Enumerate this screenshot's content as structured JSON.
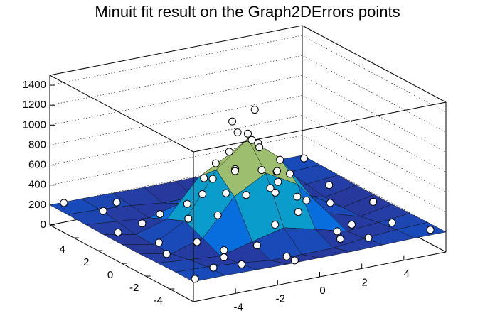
{
  "chart_data": {
    "type": "surface3d",
    "title": "Minuit fit result on the Graph2DErrors points",
    "xlim": [
      -6,
      6
    ],
    "ylim": [
      -6,
      6
    ],
    "zlim": [
      0,
      1500
    ],
    "xticks": [
      -4,
      -2,
      0,
      2,
      4
    ],
    "yticks": [
      -4,
      -2,
      0,
      2,
      4
    ],
    "zticks": [
      0,
      200,
      400,
      600,
      800,
      1000,
      1200,
      1400
    ],
    "grid": true,
    "colormap": [
      "#352a87",
      "#0363e1",
      "#1485d4",
      "#06a7c6",
      "#38b99e",
      "#92bf73",
      "#d9ba56",
      "#fcce2e"
    ],
    "surface": {
      "x": [
        -6,
        -4.5,
        -3,
        -1.5,
        0,
        1.5,
        3,
        4.5,
        6
      ],
      "y": [
        -6,
        -4.5,
        -3,
        -1.5,
        0,
        1.5,
        3,
        4.5,
        6
      ],
      "z": [
        [
          200,
          200,
          195,
          190,
          190,
          190,
          195,
          200,
          200
        ],
        [
          200,
          190,
          166,
          130,
          127,
          130,
          166,
          190,
          200
        ],
        [
          195,
          166,
          140,
          222,
          300,
          222,
          140,
          166,
          195
        ],
        [
          190,
          130,
          222,
          578,
          750,
          578,
          222,
          130,
          190
        ],
        [
          190,
          127,
          300,
          750,
          1000,
          750,
          300,
          127,
          190
        ],
        [
          190,
          130,
          222,
          578,
          750,
          578,
          222,
          130,
          190
        ],
        [
          195,
          166,
          140,
          222,
          300,
          222,
          140,
          166,
          195
        ],
        [
          200,
          190,
          166,
          130,
          127,
          130,
          166,
          190,
          200
        ],
        [
          200,
          200,
          195,
          190,
          190,
          190,
          195,
          200,
          200
        ]
      ]
    },
    "points": {
      "x": [
        0,
        0.5,
        -0.4,
        0.2,
        1,
        -1,
        0.8,
        -0.9,
        1.5,
        -1.5,
        0.3,
        0.1,
        2,
        -2,
        1.2,
        -1.8,
        2.5,
        -2.6,
        0.5,
        -0.3,
        3.2,
        -3.1,
        1.8,
        -1.5,
        3.8,
        -3.6,
        2.4,
        -2.9,
        4.2,
        -4.4,
        0.4,
        -0.6,
        5,
        -5,
        4.8,
        -4.6,
        3.5,
        -3.2,
        5.5,
        -5.6,
        1.1,
        -0.9,
        5.8,
        -5.7,
        5.6,
        -5.5,
        2.9,
        -2.7,
        2.6,
        -2.5,
        0.7,
        -0.6,
        1.3,
        -0.2,
        4.5,
        -4.2,
        3,
        -3.5
      ],
      "y": [
        0,
        0.3,
        0.6,
        -0.5,
        0.8,
        -0.7,
        -1,
        1.1,
        0.2,
        0.3,
        1.6,
        -1.7,
        1,
        -1,
        -2.1,
        1.9,
        -0.5,
        0.4,
        2.7,
        -2.8,
        1.5,
        -1.2,
        3.3,
        -3.4,
        -2,
        2.5,
        -3.5,
        -3.1,
        0.5,
        -0.3,
        4.5,
        -4.3,
        2,
        -2,
        -3.6,
        4,
        5,
        -5.1,
        -0.8,
        1,
        5.6,
        -5.5,
        5.5,
        -5.6,
        -5.4,
        5.7,
        2.8,
        2.6,
        -2.9,
        -2.4,
        0.9,
        -0.2,
        -0.4,
        1.2,
        4.4,
        -4.5,
        -4.8,
        4.8
      ],
      "z": [
        1050,
        1250,
        1150,
        980,
        820,
        780,
        700,
        720,
        600,
        640,
        560,
        610,
        420,
        380,
        350,
        300,
        310,
        280,
        260,
        330,
        190,
        170,
        150,
        210,
        110,
        140,
        120,
        130,
        150,
        160,
        140,
        120,
        200,
        180,
        190,
        210,
        220,
        200,
        190,
        230,
        200,
        170,
        210,
        190,
        200,
        220,
        160,
        190,
        150,
        140,
        900,
        1100,
        760,
        800,
        180,
        170,
        190,
        200
      ]
    }
  }
}
